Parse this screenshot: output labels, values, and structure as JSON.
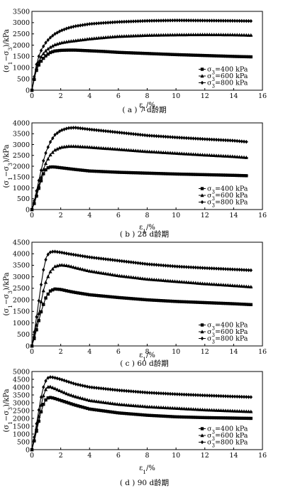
{
  "chart_data": [
    {
      "type": "line",
      "caption": "( a ) 7 d龄期",
      "xlabel": "ε1/%",
      "ylabel": "(σ1−σ3)/kPa",
      "xlim": [
        0,
        16
      ],
      "ylim": [
        0,
        3500
      ],
      "xticks": [
        "0",
        "2",
        "4",
        "6",
        "8",
        "10",
        "12",
        "14",
        "16"
      ],
      "yticks": [
        "0",
        "500",
        "1000",
        "1500",
        "2000",
        "2500",
        "3000",
        "3500"
      ],
      "legend_position": "bottom-right",
      "legend": [
        "σ3=400 kPa",
        "σ3=600 kPa",
        "σ3=800 kPa"
      ],
      "series": [
        {
          "name": "σ3=400 kPa",
          "marker": "square",
          "x": [
            0,
            0.1,
            0.2,
            0.3,
            0.5,
            0.7,
            1.0,
            1.3,
            1.6,
            2.0,
            2.5,
            3.0,
            4.0,
            5.0,
            6.0,
            8.0,
            10.0,
            12.0,
            14.0,
            15.3
          ],
          "y": [
            0,
            300,
            600,
            850,
            1150,
            1350,
            1550,
            1680,
            1740,
            1770,
            1780,
            1780,
            1750,
            1720,
            1680,
            1630,
            1580,
            1540,
            1500,
            1480
          ]
        },
        {
          "name": "σ3=600 kPa",
          "marker": "triangle",
          "x": [
            0,
            0.1,
            0.2,
            0.3,
            0.5,
            0.7,
            1.0,
            1.3,
            1.6,
            2.0,
            2.5,
            3.0,
            4.0,
            5.0,
            6.0,
            8.0,
            10.0,
            12.0,
            14.0,
            15.3
          ],
          "y": [
            0,
            330,
            650,
            950,
            1300,
            1550,
            1780,
            1920,
            2020,
            2100,
            2160,
            2200,
            2280,
            2340,
            2390,
            2440,
            2460,
            2470,
            2460,
            2440
          ]
        },
        {
          "name": "σ3=800 kPa",
          "marker": "diamond",
          "x": [
            0,
            0.1,
            0.2,
            0.3,
            0.5,
            0.7,
            1.0,
            1.3,
            1.6,
            2.0,
            2.5,
            3.0,
            4.0,
            5.0,
            6.0,
            8.0,
            10.0,
            12.0,
            14.0,
            15.3
          ],
          "y": [
            0,
            380,
            750,
            1100,
            1550,
            1850,
            2150,
            2350,
            2500,
            2640,
            2760,
            2840,
            2940,
            2990,
            3030,
            3080,
            3100,
            3090,
            3080,
            3070
          ]
        }
      ]
    },
    {
      "type": "line",
      "caption": "( b ) 28 d龄期",
      "xlabel": "ε1/%",
      "ylabel": "(σ1−σ3)/kPa",
      "xlim": [
        0,
        16
      ],
      "ylim": [
        0,
        4000
      ],
      "xticks": [
        "0",
        "2",
        "4",
        "6",
        "8",
        "10",
        "12",
        "14",
        "16"
      ],
      "yticks": [
        "0",
        "500",
        "1000",
        "1500",
        "2000",
        "2500",
        "3000",
        "3500",
        "4000"
      ],
      "legend_position": "bottom-right",
      "legend": [
        "σ3=400 kPa",
        "σ3=600 kPa",
        "σ3=800 kPa"
      ],
      "series": [
        {
          "name": "σ3=400 kPa",
          "marker": "square",
          "x": [
            0,
            0.2,
            0.4,
            0.6,
            0.8,
            1.0,
            1.2,
            1.5,
            2.0,
            3.0,
            4.0,
            6.0,
            8.0,
            10.0,
            12.0,
            14.0,
            15.0
          ],
          "y": [
            0,
            350,
            800,
            1250,
            1650,
            1880,
            1960,
            1970,
            1930,
            1850,
            1780,
            1720,
            1680,
            1640,
            1610,
            1580,
            1560
          ]
        },
        {
          "name": "σ3=600 kPa",
          "marker": "triangle",
          "x": [
            0,
            0.2,
            0.4,
            0.6,
            0.8,
            1.0,
            1.3,
            1.6,
            2.0,
            2.5,
            3.0,
            4.0,
            6.0,
            8.0,
            10.0,
            12.0,
            14.0,
            15.0
          ],
          "y": [
            0,
            400,
            900,
            1400,
            1850,
            2200,
            2550,
            2750,
            2870,
            2920,
            2920,
            2880,
            2780,
            2680,
            2600,
            2520,
            2450,
            2400
          ]
        },
        {
          "name": "σ3=800 kPa",
          "marker": "diamond",
          "x": [
            0,
            0.2,
            0.4,
            0.6,
            0.8,
            1.0,
            1.3,
            1.6,
            2.0,
            2.5,
            3.0,
            4.0,
            6.0,
            8.0,
            10.0,
            12.0,
            14.0,
            15.0
          ],
          "y": [
            0,
            500,
            1100,
            1700,
            2250,
            2700,
            3150,
            3450,
            3650,
            3760,
            3780,
            3700,
            3560,
            3420,
            3330,
            3250,
            3180,
            3120
          ]
        }
      ]
    },
    {
      "type": "line",
      "caption": "( c ) 60 d龄期",
      "xlabel": "ε1/%",
      "ylabel": "(σ1−σ3)/kPa",
      "xlim": [
        0,
        16
      ],
      "ylim": [
        0,
        4500
      ],
      "xticks": [
        "0",
        "2",
        "4",
        "6",
        "8",
        "10",
        "12",
        "14",
        "16"
      ],
      "yticks": [
        "0",
        "500",
        "1000",
        "1500",
        "2000",
        "2500",
        "3000",
        "3500",
        "4000",
        "4500"
      ],
      "legend_position": "bottom-right",
      "legend": [
        "σ3=400 kPa",
        "σ3=600 kPa",
        "σ3=800 kPa"
      ],
      "series": [
        {
          "name": "σ3=400 kPa",
          "marker": "square",
          "x": [
            0,
            0.2,
            0.4,
            0.6,
            0.8,
            1.0,
            1.3,
            1.6,
            2.0,
            2.5,
            3.0,
            4.0,
            6.0,
            8.0,
            10.0,
            12.0,
            14.0,
            15.3
          ],
          "y": [
            0,
            400,
            900,
            1400,
            1800,
            2150,
            2400,
            2470,
            2450,
            2380,
            2320,
            2220,
            2100,
            2000,
            1930,
            1880,
            1830,
            1790
          ]
        },
        {
          "name": "σ3=600 kPa",
          "marker": "triangle",
          "x": [
            0,
            0.2,
            0.4,
            0.6,
            0.8,
            1.0,
            1.3,
            1.6,
            2.0,
            2.5,
            3.0,
            4.0,
            6.0,
            8.0,
            10.0,
            12.0,
            14.0,
            15.3
          ],
          "y": [
            0,
            550,
            1150,
            1800,
            2400,
            2850,
            3250,
            3450,
            3520,
            3480,
            3400,
            3250,
            3050,
            2900,
            2800,
            2700,
            2620,
            2560
          ]
        },
        {
          "name": "σ3=800 kPa",
          "marker": "diamond",
          "x": [
            0,
            0.2,
            0.4,
            0.6,
            0.8,
            1.0,
            1.2,
            1.5,
            2.0,
            2.5,
            3.0,
            4.0,
            6.0,
            8.0,
            10.0,
            12.0,
            14.0,
            15.3
          ],
          "y": [
            0,
            750,
            1600,
            2500,
            3300,
            3850,
            4050,
            4100,
            4060,
            4000,
            3950,
            3850,
            3700,
            3550,
            3450,
            3380,
            3320,
            3280
          ]
        }
      ]
    },
    {
      "type": "line",
      "caption": "( d ) 90 d龄期",
      "xlabel": "ε1/%",
      "ylabel": "(σ1−σ3)/kPa",
      "xlim": [
        0,
        16
      ],
      "ylim": [
        0,
        5000
      ],
      "xticks": [
        "0",
        "2",
        "4",
        "6",
        "8",
        "10",
        "12",
        "14",
        "16"
      ],
      "yticks": [
        "0",
        "500",
        "1000",
        "1500",
        "2000",
        "2500",
        "3000",
        "3500",
        "4000",
        "4500",
        "5000"
      ],
      "legend_position": "bottom-right",
      "legend": [
        "σ3=400 kPa",
        "σ3=600 kPa",
        "σ3=800 kPa"
      ],
      "series": [
        {
          "name": "σ3=400 kPa",
          "marker": "square",
          "x": [
            0,
            0.2,
            0.4,
            0.6,
            0.8,
            1.0,
            1.2,
            1.5,
            2.0,
            2.5,
            3.0,
            4.0,
            6.0,
            8.0,
            10.0,
            12.0,
            14.0,
            15.3
          ],
          "y": [
            0,
            700,
            1500,
            2300,
            2900,
            3250,
            3350,
            3300,
            3150,
            3000,
            2850,
            2600,
            2350,
            2200,
            2100,
            2050,
            2020,
            2000
          ]
        },
        {
          "name": "σ3=600 kPa",
          "marker": "triangle",
          "x": [
            0,
            0.2,
            0.4,
            0.6,
            0.8,
            1.0,
            1.2,
            1.5,
            2.0,
            2.5,
            3.0,
            4.0,
            6.0,
            8.0,
            10.0,
            12.0,
            14.0,
            15.3
          ],
          "y": [
            0,
            800,
            1750,
            2700,
            3450,
            3950,
            4050,
            3950,
            3750,
            3550,
            3400,
            3150,
            2900,
            2750,
            2650,
            2550,
            2480,
            2430
          ]
        },
        {
          "name": "σ3=800 kPa",
          "marker": "diamond",
          "x": [
            0,
            0.2,
            0.4,
            0.6,
            0.8,
            1.0,
            1.2,
            1.5,
            2.0,
            2.5,
            3.0,
            4.0,
            6.0,
            8.0,
            10.0,
            12.0,
            14.0,
            15.3
          ],
          "y": [
            0,
            1000,
            2100,
            3200,
            4000,
            4500,
            4650,
            4620,
            4500,
            4350,
            4200,
            4000,
            3800,
            3650,
            3550,
            3470,
            3400,
            3360
          ]
        }
      ]
    }
  ]
}
